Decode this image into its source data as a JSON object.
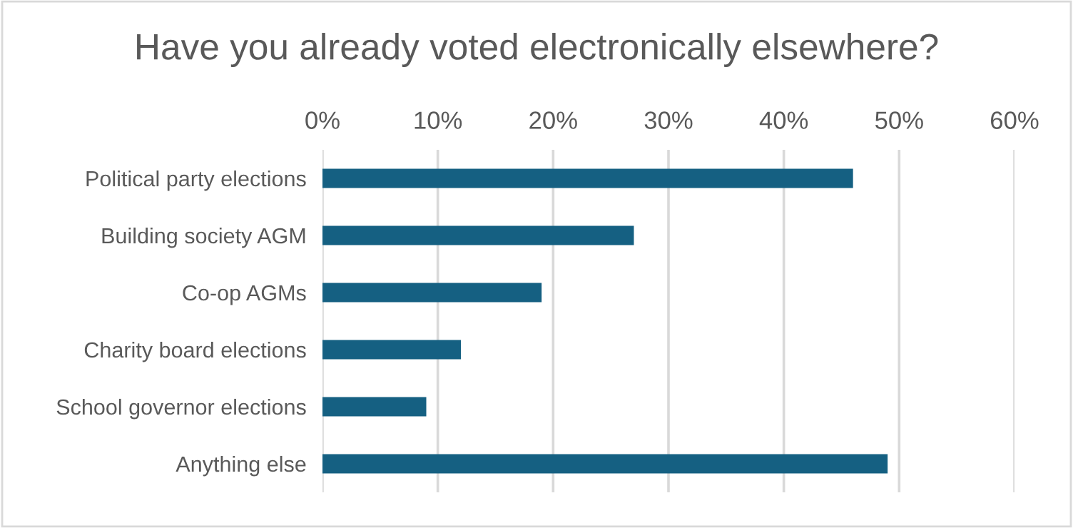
{
  "chart_data": {
    "type": "bar",
    "orientation": "horizontal",
    "title": "Have you already voted electronically elsewhere?",
    "categories": [
      "Political party elections",
      "Building society AGM",
      "Co-op AGMs",
      "Charity board elections",
      "School governor elections",
      "Anything else"
    ],
    "values": [
      46,
      27,
      19,
      12,
      9,
      49
    ],
    "color": "#156082",
    "xlim": [
      0,
      60
    ],
    "xticks": [
      {
        "value": 0,
        "label": "0%"
      },
      {
        "value": 10,
        "label": "10%"
      },
      {
        "value": 20,
        "label": "20%"
      },
      {
        "value": 30,
        "label": "30%"
      },
      {
        "value": 40,
        "label": "40%"
      },
      {
        "value": 50,
        "label": "50%"
      },
      {
        "value": 60,
        "label": "60%"
      }
    ],
    "grid": "x"
  }
}
